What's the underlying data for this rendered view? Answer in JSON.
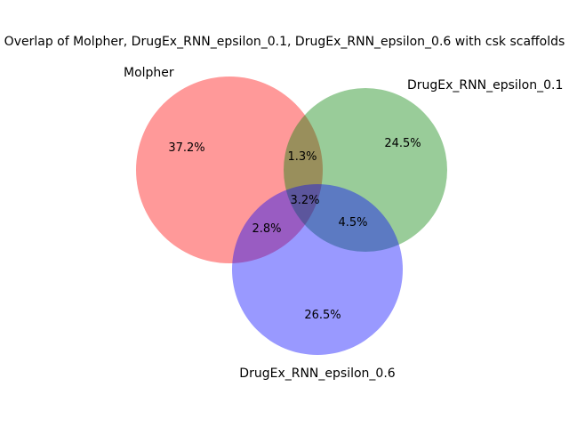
{
  "title": "Overlap of Molpher, DrugEx_RNN_epsilon_0.1, DrugEx_RNN_epsilon_0.6 with csk scaffolds",
  "sets": [
    {
      "id": "A",
      "label": "Molpher",
      "color": "#ff0000"
    },
    {
      "id": "B",
      "label": "DrugEx_RNN_epsilon_0.1",
      "color": "#008000"
    },
    {
      "id": "C",
      "label": "DrugEx_RNN_epsilon_0.6",
      "color": "#0000ff"
    }
  ],
  "regions": {
    "A_only": "37.2%",
    "B_only": "24.5%",
    "C_only": "26.5%",
    "AB": "1.3%",
    "AC": "2.8%",
    "BC": "4.5%",
    "ABC": "3.2%"
  }
}
